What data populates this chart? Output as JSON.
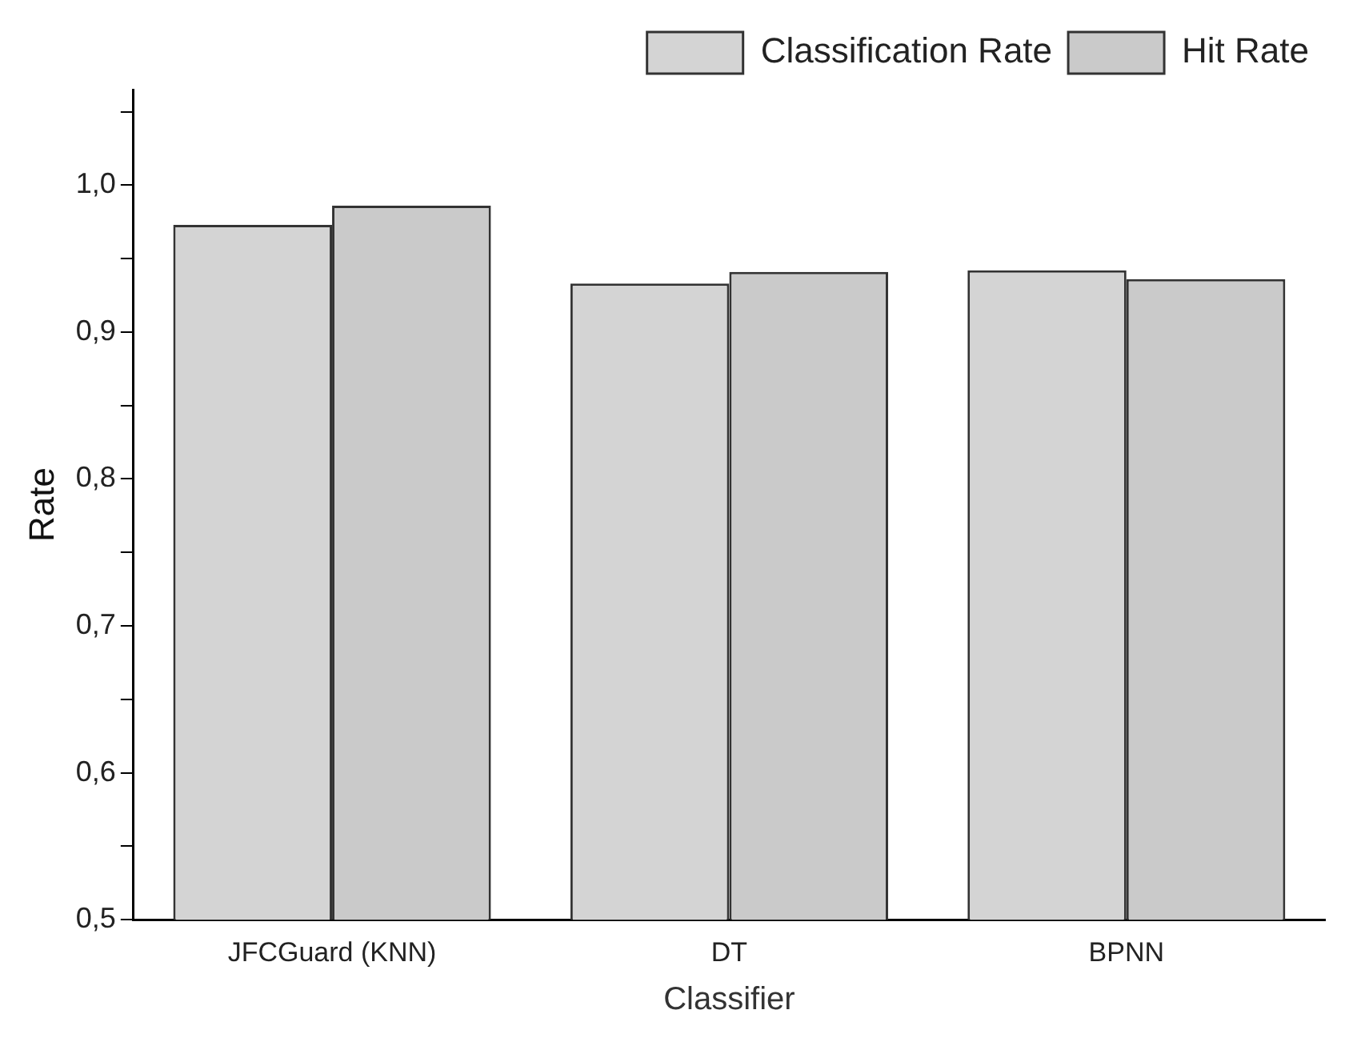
{
  "chart_data": {
    "type": "bar",
    "xlabel": "Classifier",
    "ylabel": "Rate",
    "categories": [
      "JFCGuard (KNN)",
      "DT",
      "BPNN"
    ],
    "series": [
      {
        "name": "Classification Rate",
        "color": "#d4d4d4",
        "values": [
          0.973,
          0.933,
          0.942
        ]
      },
      {
        "name": "Hit Rate",
        "color": "#cacaca",
        "values": [
          0.986,
          0.941,
          0.936
        ]
      }
    ],
    "ylim": [
      0.5,
      1.065
    ],
    "yticks": [
      {
        "value": 0.5,
        "label": "0,5"
      },
      {
        "value": 0.55,
        "label": null
      },
      {
        "value": 0.6,
        "label": "0,6"
      },
      {
        "value": 0.65,
        "label": null
      },
      {
        "value": 0.7,
        "label": "0,7"
      },
      {
        "value": 0.75,
        "label": null
      },
      {
        "value": 0.8,
        "label": "0,8"
      },
      {
        "value": 0.85,
        "label": null
      },
      {
        "value": 0.9,
        "label": "0,9"
      },
      {
        "value": 0.95,
        "label": null
      },
      {
        "value": 1.0,
        "label": "1,0"
      },
      {
        "value": 1.05,
        "label": null
      }
    ],
    "grid": false,
    "legend": "top right"
  }
}
